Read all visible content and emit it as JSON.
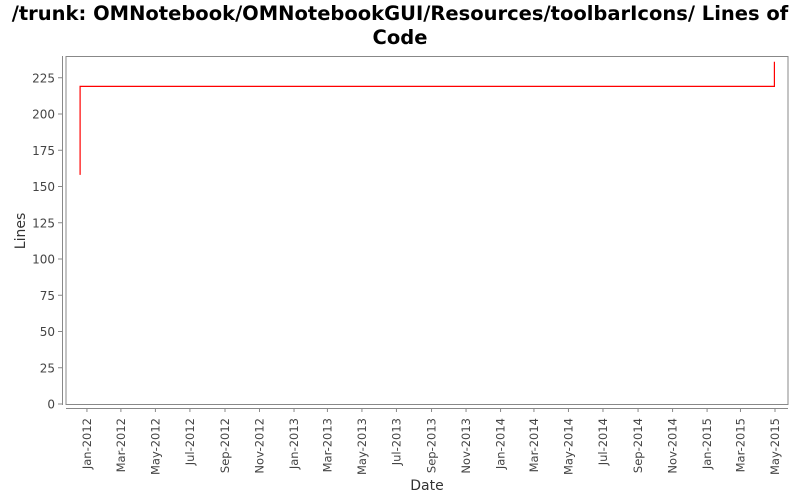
{
  "chart_data": {
    "type": "line",
    "title": "/trunk: OMNotebook/OMNotebookGUI/Resources/toolbarIcons/ Lines of Code",
    "xlabel": "Date",
    "ylabel": "Lines",
    "xlim": [
      "2011-11-25",
      "2015-05-24"
    ],
    "ylim": [
      0,
      240
    ],
    "yticks": [
      0,
      25,
      50,
      75,
      100,
      125,
      150,
      175,
      200,
      225
    ],
    "xticks": [
      {
        "date": "2012-01-01",
        "label": "Jan-2012"
      },
      {
        "date": "2012-03-01",
        "label": "Mar-2012"
      },
      {
        "date": "2012-05-01",
        "label": "May-2012"
      },
      {
        "date": "2012-07-01",
        "label": "Jul-2012"
      },
      {
        "date": "2012-09-01",
        "label": "Sep-2012"
      },
      {
        "date": "2012-11-01",
        "label": "Nov-2012"
      },
      {
        "date": "2013-01-01",
        "label": "Jan-2013"
      },
      {
        "date": "2013-03-01",
        "label": "Mar-2013"
      },
      {
        "date": "2013-05-01",
        "label": "May-2013"
      },
      {
        "date": "2013-07-01",
        "label": "Jul-2013"
      },
      {
        "date": "2013-09-01",
        "label": "Sep-2013"
      },
      {
        "date": "2013-11-01",
        "label": "Nov-2013"
      },
      {
        "date": "2014-01-01",
        "label": "Jan-2014"
      },
      {
        "date": "2014-03-01",
        "label": "Mar-2014"
      },
      {
        "date": "2014-05-01",
        "label": "May-2014"
      },
      {
        "date": "2014-07-01",
        "label": "Jul-2014"
      },
      {
        "date": "2014-09-01",
        "label": "Sep-2014"
      },
      {
        "date": "2014-11-01",
        "label": "Nov-2014"
      },
      {
        "date": "2015-01-01",
        "label": "Jan-2015"
      },
      {
        "date": "2015-03-01",
        "label": "Mar-2015"
      },
      {
        "date": "2015-05-01",
        "label": "May-2015"
      }
    ],
    "grid": false,
    "step": true,
    "series": [
      {
        "color": "#ff0000",
        "points": [
          {
            "x": "2011-12-20",
            "y": 158
          },
          {
            "x": "2011-12-20",
            "y": 219
          },
          {
            "x": "2015-04-30",
            "y": 219
          },
          {
            "x": "2015-04-30",
            "y": 236
          }
        ]
      }
    ]
  }
}
